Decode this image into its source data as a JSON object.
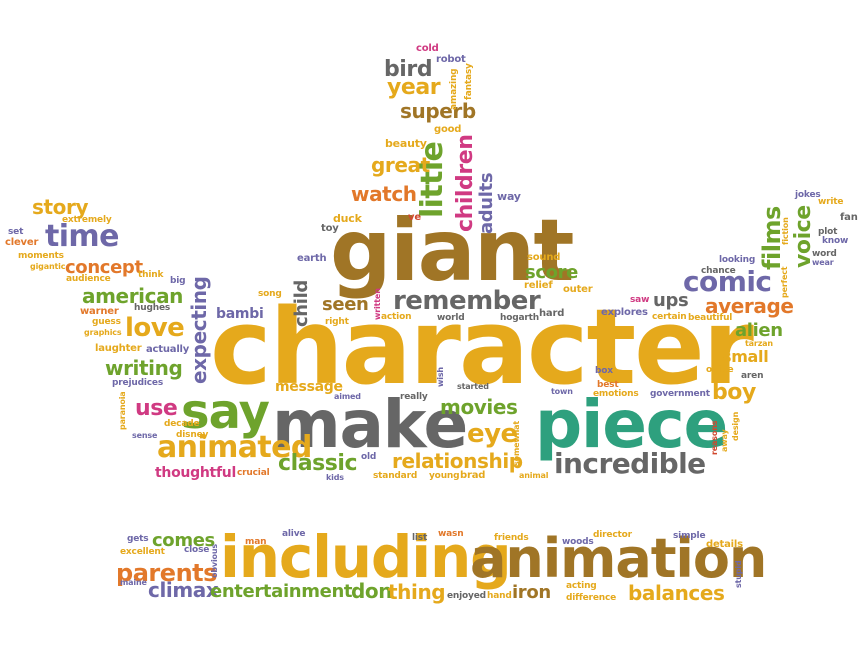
{
  "colors": {
    "orange": "#E2782A",
    "gold": "#E5A91C",
    "brown": "#A07526",
    "gray": "#666666",
    "teal": "#2EA07E",
    "green": "#6EA32C",
    "purple": "#6E68A8",
    "pink": "#D03A82",
    "red": "#D0482E"
  },
  "words": [
    {
      "t": "character",
      "c": "gold"
    },
    {
      "t": "giant",
      "c": "brown"
    },
    {
      "t": "make",
      "c": "gray"
    },
    {
      "t": "piece",
      "c": "teal"
    },
    {
      "t": "including",
      "c": "gold"
    },
    {
      "t": "animation",
      "c": "brown"
    },
    {
      "t": "say",
      "c": "green"
    },
    {
      "t": "incredible",
      "c": "gray"
    },
    {
      "t": "animated",
      "c": "gold"
    },
    {
      "t": "remember",
      "c": "gray"
    },
    {
      "t": "little",
      "c": "green"
    },
    {
      "t": "children",
      "c": "pink"
    },
    {
      "t": "comic",
      "c": "purple"
    },
    {
      "t": "films",
      "c": "green"
    },
    {
      "t": "voice",
      "c": "green"
    },
    {
      "t": "time",
      "c": "purple"
    },
    {
      "t": "love",
      "c": "gold"
    },
    {
      "t": "american",
      "c": "green"
    },
    {
      "t": "writing",
      "c": "green"
    },
    {
      "t": "expecting",
      "c": "purple"
    },
    {
      "t": "movies",
      "c": "green"
    },
    {
      "t": "eye",
      "c": "gold"
    },
    {
      "t": "relationship",
      "c": "gold"
    },
    {
      "t": "classic",
      "c": "green"
    },
    {
      "t": "boy",
      "c": "gold"
    },
    {
      "t": "alien",
      "c": "green"
    },
    {
      "t": "small",
      "c": "gold"
    },
    {
      "t": "average",
      "c": "orange"
    },
    {
      "t": "watch",
      "c": "orange"
    },
    {
      "t": "great",
      "c": "gold"
    },
    {
      "t": "superb",
      "c": "brown"
    },
    {
      "t": "year",
      "c": "gold"
    },
    {
      "t": "bird",
      "c": "gray"
    },
    {
      "t": "adults",
      "c": "purple"
    },
    {
      "t": "score",
      "c": "green"
    },
    {
      "t": "seen",
      "c": "brown"
    },
    {
      "t": "child",
      "c": "gray"
    },
    {
      "t": "story",
      "c": "gold"
    },
    {
      "t": "concept",
      "c": "orange"
    },
    {
      "t": "use",
      "c": "pink"
    },
    {
      "t": "thoughtful",
      "c": "pink"
    },
    {
      "t": "parents",
      "c": "orange"
    },
    {
      "t": "comes",
      "c": "green"
    },
    {
      "t": "climax",
      "c": "purple"
    },
    {
      "t": "entertainment",
      "c": "green"
    },
    {
      "t": "don",
      "c": "green"
    },
    {
      "t": "thing",
      "c": "gold"
    },
    {
      "t": "balances",
      "c": "gold"
    },
    {
      "t": "iron",
      "c": "brown"
    },
    {
      "t": "ups",
      "c": "gray"
    },
    {
      "t": "message",
      "c": "gold"
    },
    {
      "t": "bambi",
      "c": "purple"
    },
    {
      "t": "cold",
      "c": "pink"
    },
    {
      "t": "robot",
      "c": "purple"
    },
    {
      "t": "amazing",
      "c": "gold"
    },
    {
      "t": "fantasy",
      "c": "gold"
    },
    {
      "t": "beauty",
      "c": "gold"
    },
    {
      "t": "good",
      "c": "gold"
    },
    {
      "t": "way",
      "c": "purple"
    },
    {
      "t": "duck",
      "c": "gold"
    },
    {
      "t": "toy",
      "c": "gray"
    },
    {
      "t": "ve",
      "c": "red"
    },
    {
      "t": "earth",
      "c": "purple"
    },
    {
      "t": "sound",
      "c": "gold"
    },
    {
      "t": "relief",
      "c": "gold"
    },
    {
      "t": "outer",
      "c": "gold"
    },
    {
      "t": "extremely",
      "c": "gold"
    },
    {
      "t": "set",
      "c": "purple"
    },
    {
      "t": "clever",
      "c": "orange"
    },
    {
      "t": "moments",
      "c": "gold"
    },
    {
      "t": "gigantic",
      "c": "gold"
    },
    {
      "t": "audience",
      "c": "gold"
    },
    {
      "t": "think",
      "c": "gold"
    },
    {
      "t": "big",
      "c": "purple"
    },
    {
      "t": "warner",
      "c": "orange"
    },
    {
      "t": "hughes",
      "c": "gray"
    },
    {
      "t": "guess",
      "c": "gold"
    },
    {
      "t": "graphics",
      "c": "gold"
    },
    {
      "t": "laughter",
      "c": "gold"
    },
    {
      "t": "actually",
      "c": "purple"
    },
    {
      "t": "prejudices",
      "c": "purple"
    },
    {
      "t": "song",
      "c": "gold"
    },
    {
      "t": "right",
      "c": "gold"
    },
    {
      "t": "written",
      "c": "pink"
    },
    {
      "t": "action",
      "c": "gold"
    },
    {
      "t": "world",
      "c": "gray"
    },
    {
      "t": "hogarth",
      "c": "gray"
    },
    {
      "t": "hard",
      "c": "gray"
    },
    {
      "t": "saw",
      "c": "pink"
    },
    {
      "t": "explores",
      "c": "purple"
    },
    {
      "t": "certain",
      "c": "gold"
    },
    {
      "t": "beautiful",
      "c": "gold"
    },
    {
      "t": "looking",
      "c": "purple"
    },
    {
      "t": "chance",
      "c": "gray"
    },
    {
      "t": "fiction",
      "c": "gold"
    },
    {
      "t": "perfect",
      "c": "gold"
    },
    {
      "t": "jokes",
      "c": "purple"
    },
    {
      "t": "write",
      "c": "gold"
    },
    {
      "t": "fan",
      "c": "gray"
    },
    {
      "t": "plot",
      "c": "gray"
    },
    {
      "t": "know",
      "c": "purple"
    },
    {
      "t": "word",
      "c": "gray"
    },
    {
      "t": "wear",
      "c": "purple"
    },
    {
      "t": "tarzan",
      "c": "gold"
    },
    {
      "t": "office",
      "c": "gold"
    },
    {
      "t": "aren",
      "c": "gray"
    },
    {
      "t": "box",
      "c": "purple"
    },
    {
      "t": "emotions",
      "c": "gold"
    },
    {
      "t": "best",
      "c": "orange"
    },
    {
      "t": "government",
      "c": "purple"
    },
    {
      "t": "town",
      "c": "purple"
    },
    {
      "t": "wish",
      "c": "purple"
    },
    {
      "t": "started",
      "c": "gray"
    },
    {
      "t": "aimed",
      "c": "purple"
    },
    {
      "t": "really",
      "c": "gray"
    },
    {
      "t": "paranoia",
      "c": "gold"
    },
    {
      "t": "sense",
      "c": "purple"
    },
    {
      "t": "decade",
      "c": "gold"
    },
    {
      "t": "disney",
      "c": "gold"
    },
    {
      "t": "crucial",
      "c": "orange"
    },
    {
      "t": "old",
      "c": "purple"
    },
    {
      "t": "kids",
      "c": "purple"
    },
    {
      "t": "standard",
      "c": "gold"
    },
    {
      "t": "young",
      "c": "gold"
    },
    {
      "t": "brad",
      "c": "gold"
    },
    {
      "t": "somewhat",
      "c": "gold"
    },
    {
      "t": "animal",
      "c": "gold"
    },
    {
      "t": "reasons",
      "c": "red"
    },
    {
      "t": "away",
      "c": "gold"
    },
    {
      "t": "design",
      "c": "gold"
    },
    {
      "t": "gets",
      "c": "purple"
    },
    {
      "t": "excellent",
      "c": "gold"
    },
    {
      "t": "close",
      "c": "purple"
    },
    {
      "t": "maine",
      "c": "purple"
    },
    {
      "t": "obvious",
      "c": "purple"
    },
    {
      "t": "man",
      "c": "orange"
    },
    {
      "t": "alive",
      "c": "purple"
    },
    {
      "t": "list",
      "c": "gray"
    },
    {
      "t": "wasn",
      "c": "orange"
    },
    {
      "t": "friends",
      "c": "gold"
    },
    {
      "t": "woods",
      "c": "purple"
    },
    {
      "t": "director",
      "c": "gold"
    },
    {
      "t": "simple",
      "c": "purple"
    },
    {
      "t": "details",
      "c": "gold"
    },
    {
      "t": "stupid",
      "c": "purple"
    },
    {
      "t": "acting",
      "c": "gold"
    },
    {
      "t": "difference",
      "c": "gold"
    },
    {
      "t": "enjoyed",
      "c": "gray"
    },
    {
      "t": "hand",
      "c": "gold"
    }
  ]
}
